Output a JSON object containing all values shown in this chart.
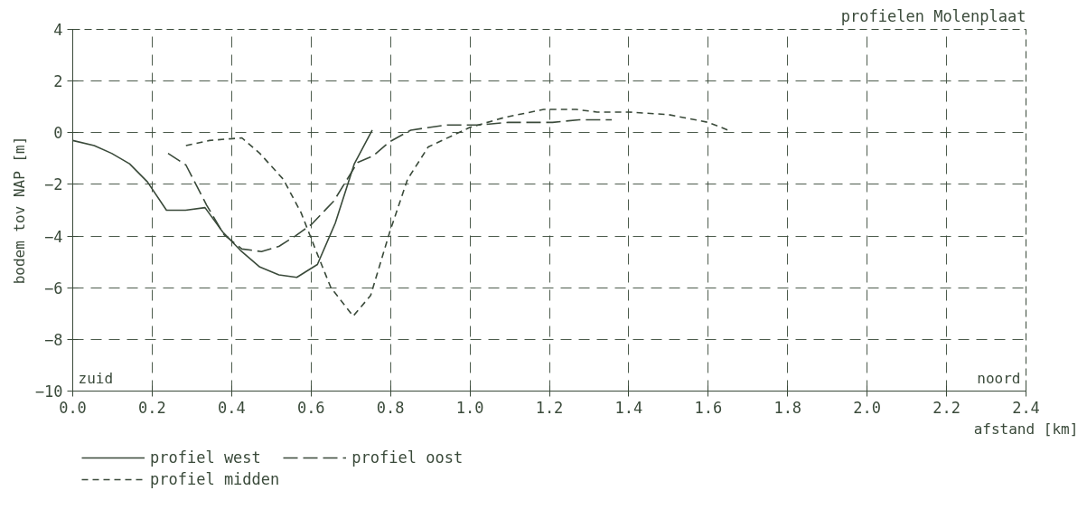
{
  "chart_data": {
    "type": "line",
    "title": "profielen Molenplaat",
    "xlabel": "afstand [km]",
    "ylabel": "bodem tov NAP [m]",
    "annotations": [
      "zuid",
      "noord"
    ],
    "xlim": [
      0,
      2.4
    ],
    "ylim": [
      -10,
      4
    ],
    "xticks": [
      {
        "value": 0,
        "label": "0.0"
      },
      0.2,
      0.4,
      0.6,
      0.8,
      {
        "value": 1,
        "label": "1.0"
      },
      1.2,
      1.4,
      1.6,
      1.8,
      {
        "value": 2,
        "label": "2.0"
      },
      2.2,
      2.4
    ],
    "yticks": [
      -10,
      -8,
      -6,
      -4,
      -2,
      0,
      2,
      4
    ],
    "grid": true,
    "legend": "bottom",
    "series": [
      {
        "name": "profiel west",
        "color": "#3a4a3a",
        "line_style": "solid",
        "x": [
          0,
          0.054,
          0.098,
          0.143,
          0.188,
          0.236,
          0.284,
          0.333,
          0.378,
          0.422,
          0.471,
          0.519,
          0.564,
          0.616,
          0.661,
          0.709,
          0.754
        ],
        "values": [
          -0.3,
          -0.5,
          -0.8,
          -1.2,
          -1.9,
          -3.0,
          -3.0,
          -2.9,
          -3.85,
          -4.55,
          -5.2,
          -5.5,
          -5.6,
          -5.1,
          -3.5,
          -1.2,
          0.1
        ]
      },
      {
        "name": "profiel oost",
        "color": "#3a4a3a",
        "line_style": "dashed",
        "x": [
          0.24,
          0.285,
          0.337,
          0.381,
          0.426,
          0.475,
          0.519,
          0.56,
          0.601,
          0.657,
          0.717,
          0.756,
          0.798,
          0.851,
          0.94,
          1.022,
          1.096,
          1.208,
          1.275,
          1.357
        ],
        "values": [
          -0.8,
          -1.25,
          -2.8,
          -3.95,
          -4.5,
          -4.6,
          -4.4,
          -4.0,
          -3.55,
          -2.65,
          -1.15,
          -0.9,
          -0.35,
          0.1,
          0.3,
          0.3,
          0.4,
          0.4,
          0.5,
          0.5
        ]
      },
      {
        "name": "profiel midden",
        "color": "#3a4a3a",
        "line_style": "dotted",
        "x": [
          0.285,
          0.344,
          0.426,
          0.471,
          0.53,
          0.575,
          0.612,
          0.65,
          0.706,
          0.75,
          0.798,
          0.843,
          0.895,
          0.999,
          1.089,
          1.186,
          1.268,
          1.32,
          1.4,
          1.5,
          1.6,
          1.65
        ],
        "values": [
          -0.5,
          -0.3,
          -0.2,
          -0.8,
          -1.8,
          -3.1,
          -4.55,
          -6.0,
          -7.1,
          -6.3,
          -3.85,
          -1.8,
          -0.55,
          0.2,
          0.6,
          0.9,
          0.9,
          0.8,
          0.8,
          0.7,
          0.4,
          0.1
        ]
      }
    ]
  }
}
